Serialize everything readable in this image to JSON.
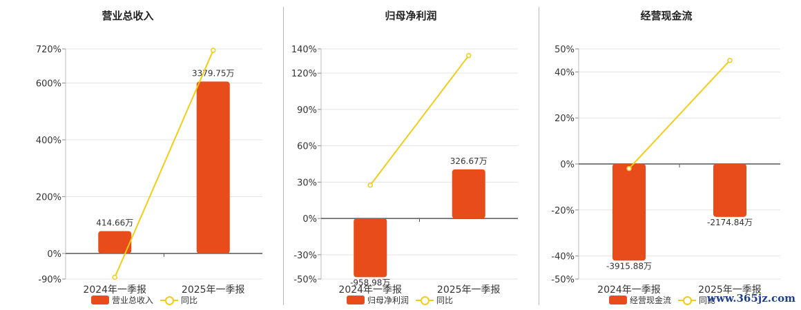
{
  "colors": {
    "bar": "#e84c1b",
    "line": "#f2cc15",
    "axis": "#555555",
    "grid": "#e3e3e3"
  },
  "watermark": "www.365jz.com",
  "chart_data": [
    {
      "type": "bar",
      "title": "营业总收入",
      "categories": [
        "2024年一季报",
        "2025年一季报"
      ],
      "ytick_labels": [
        "720%",
        "600%",
        "400%",
        "200%",
        "0%",
        "-90%"
      ],
      "ylim": [
        -90,
        720
      ],
      "series": [
        {
          "name": "营业总收入",
          "kind": "bar",
          "values": [
            78.4,
            605
          ],
          "labels": [
            "414.66万",
            "3379.75万"
          ]
        },
        {
          "name": "同比",
          "kind": "line",
          "values": [
            -84,
            715
          ]
        }
      ]
    },
    {
      "type": "bar",
      "title": "归母净利润",
      "categories": [
        "2024年一季报",
        "2025年一季报"
      ],
      "ytick_labels": [
        "140%",
        "120%",
        "90%",
        "60%",
        "30%",
        "0%",
        "-30%",
        "-50%"
      ],
      "ylim": [
        -50,
        140
      ],
      "series": [
        {
          "name": "归母净利润",
          "kind": "bar",
          "values": [
            -48.5,
            40.5
          ],
          "labels": [
            "-958.98万",
            "326.67万"
          ]
        },
        {
          "name": "同比",
          "kind": "line",
          "values": [
            27.5,
            134.5
          ]
        }
      ]
    },
    {
      "type": "bar",
      "title": "经营现金流",
      "categories": [
        "2024年一季报",
        "2025年一季报"
      ],
      "ytick_labels": [
        "50%",
        "40%",
        "20%",
        "0%",
        "-20%",
        "-40%",
        "-50%"
      ],
      "ylim": [
        -50,
        50
      ],
      "series": [
        {
          "name": "经营现金流",
          "kind": "bar",
          "values": [
            -42,
            -23
          ],
          "labels": [
            "-3915.88万",
            "-2174.84万"
          ]
        },
        {
          "name": "同比",
          "kind": "line",
          "values": [
            -2,
            45
          ]
        }
      ]
    }
  ]
}
